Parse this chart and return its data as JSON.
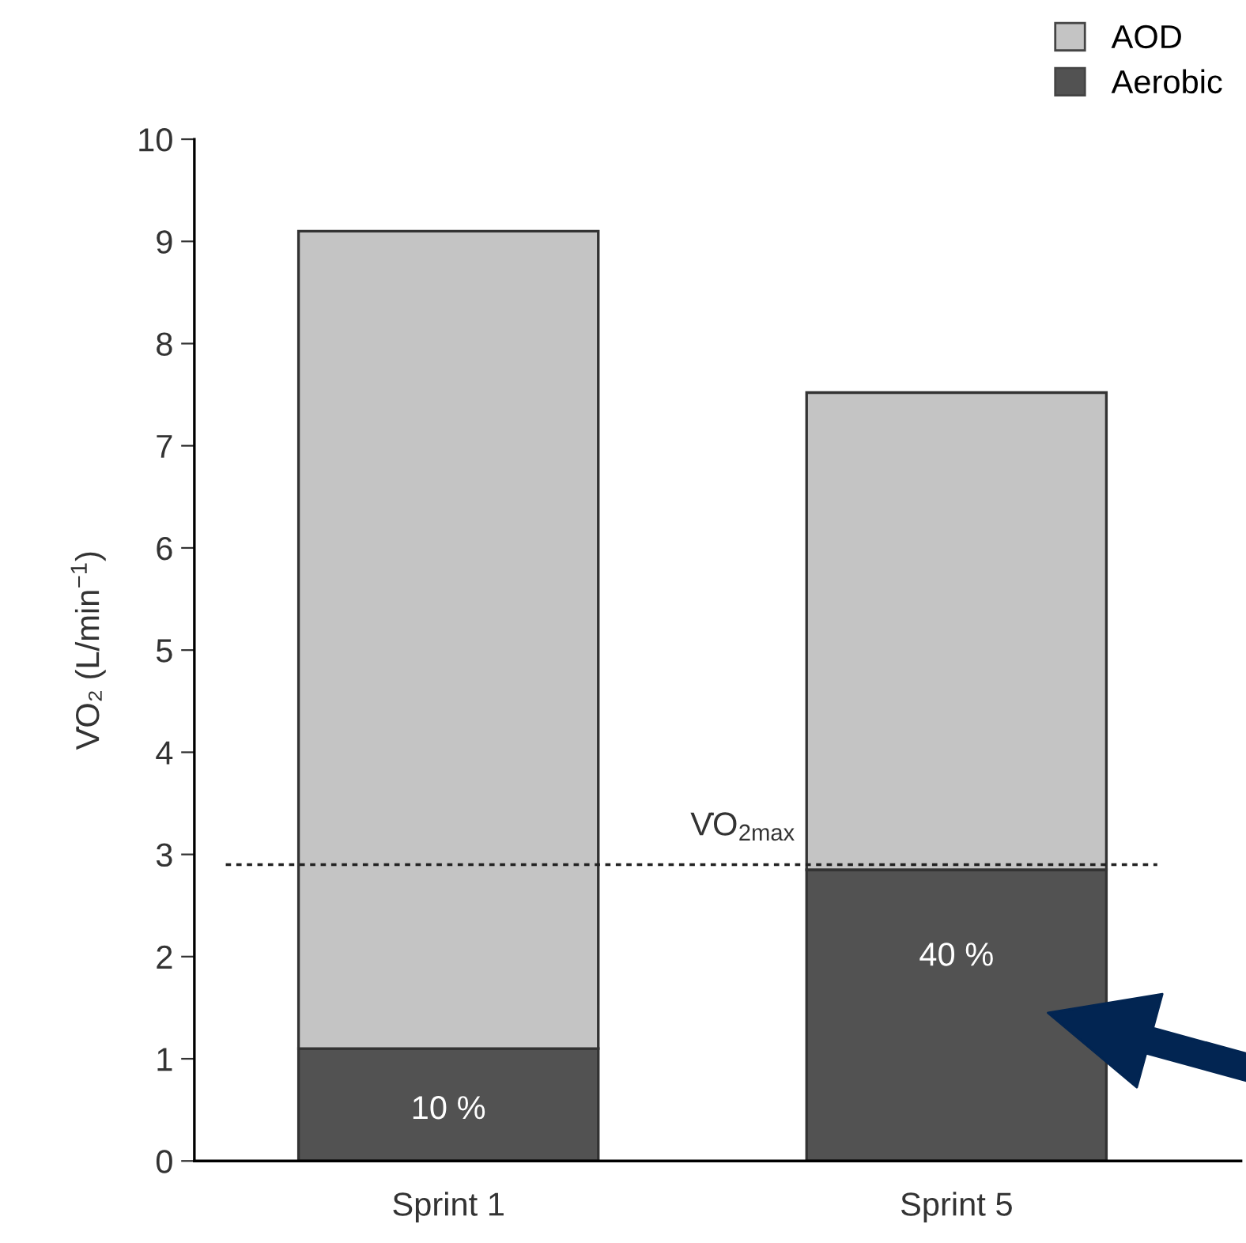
{
  "chart_data": {
    "type": "bar",
    "stacked": true,
    "categories": [
      "Sprint 1",
      "Sprint 5"
    ],
    "series": [
      {
        "name": "Aerobic",
        "color": "#525252",
        "values": [
          1.1,
          2.85
        ]
      },
      {
        "name": "AOD",
        "color": "#c4c4c4",
        "values": [
          8.0,
          4.67
        ]
      }
    ],
    "ylabel": "V̇O₂ (L/min$^{−1}$)",
    "ylim": [
      0,
      10
    ],
    "yticks": [
      0,
      1,
      2,
      3,
      4,
      5,
      6,
      7,
      8,
      9,
      10
    ],
    "ref_lines": [
      {
        "axis": "y",
        "value": 2.9,
        "label": "V̇O$_{2max}$",
        "color": "#222222",
        "line_style": "dotted"
      }
    ],
    "annotations": [
      "10 %",
      "40 %"
    ],
    "grid": false,
    "legend": "top right"
  }
}
